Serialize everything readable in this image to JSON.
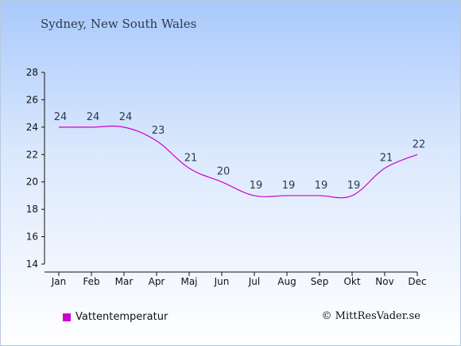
{
  "chart_data": {
    "type": "line",
    "title": "Sydney, New South Wales",
    "categories": [
      "Jan",
      "Feb",
      "Mar",
      "Apr",
      "Maj",
      "Jun",
      "Jul",
      "Aug",
      "Sep",
      "Okt",
      "Nov",
      "Dec"
    ],
    "series": [
      {
        "name": "Vattentemperatur",
        "values": [
          24,
          24,
          24,
          23,
          21,
          20,
          19,
          19,
          19,
          19,
          21,
          22
        ],
        "color": "#cc00cc"
      }
    ],
    "data_labels": [
      "24",
      "24",
      "24",
      "23",
      "21",
      "20",
      "19",
      "19",
      "19",
      "19",
      "21",
      "22"
    ],
    "ylim": [
      14,
      28
    ],
    "yticks": [
      14,
      16,
      18,
      20,
      22,
      24,
      26,
      28
    ],
    "xlabel": "",
    "ylabel": "",
    "grid": false,
    "legend_position": "bottom-left"
  },
  "credit": "© MittResVader.se"
}
